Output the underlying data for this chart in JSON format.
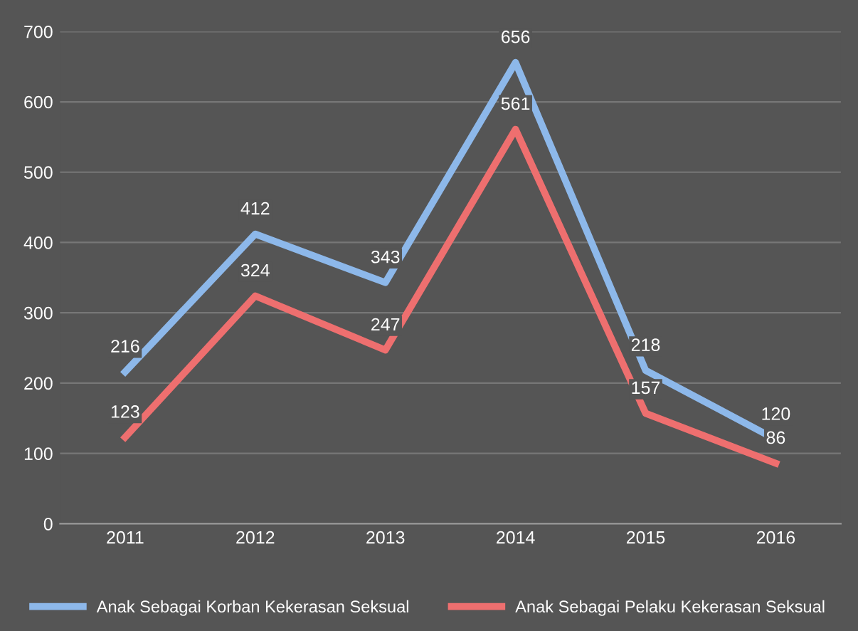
{
  "chart_data": {
    "type": "line",
    "categories": [
      "2011",
      "2012",
      "2013",
      "2014",
      "2015",
      "2016"
    ],
    "series": [
      {
        "name": "Anak Sebagai Korban Kekerasan Seksual",
        "color": "#8db8ea",
        "values": [
          216,
          412,
          343,
          656,
          218,
          120
        ]
      },
      {
        "name": "Anak Sebagai Pelaku Kekerasan Seksual",
        "color": "#ee6f6f",
        "values": [
          123,
          324,
          247,
          561,
          157,
          86
        ]
      }
    ],
    "ylim": [
      0,
      700
    ],
    "yticks": [
      0,
      100,
      200,
      300,
      400,
      500,
      600,
      700
    ],
    "grid": "y",
    "legend": "bottom",
    "data_labels": true,
    "marker": "none",
    "line_style": "solid"
  }
}
